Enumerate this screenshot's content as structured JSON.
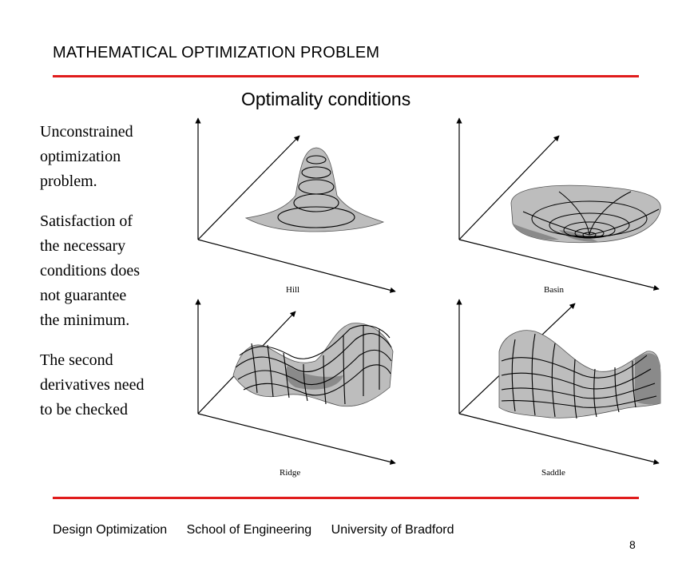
{
  "header": {
    "title": "MATHEMATICAL OPTIMIZATION PROBLEM"
  },
  "slide": {
    "title": "Optimality conditions"
  },
  "body": {
    "paragraph_1": [
      "Unconstrained",
      "optimization",
      "problem."
    ],
    "paragraph_2": [
      "Satisfaction of",
      "the necessary",
      "conditions does",
      "not guarantee",
      "the minimum."
    ],
    "paragraph_3": [
      "The second",
      "derivatives need",
      "to be checked"
    ]
  },
  "figure": {
    "panels": [
      {
        "label": "Hill"
      },
      {
        "label": "Basin"
      },
      {
        "label": "Ridge"
      },
      {
        "label": "Saddle"
      }
    ]
  },
  "footer": {
    "course": "Design Optimization",
    "school": "School of Engineering",
    "university": "University of Bradford"
  },
  "page_number": "8",
  "colors": {
    "rule": "#e01c1c",
    "surface": "#bdbdbd",
    "surface_dark": "#8a8a8a"
  }
}
